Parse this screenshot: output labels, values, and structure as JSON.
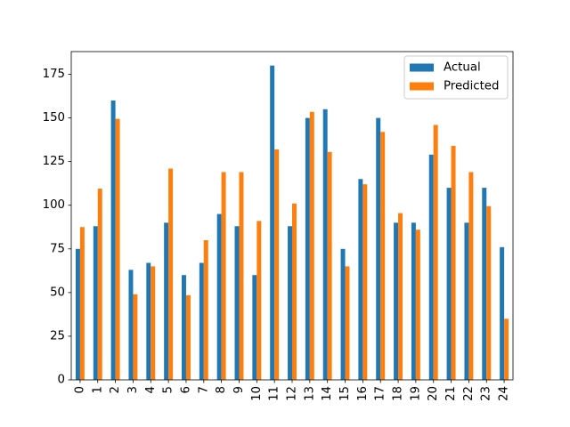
{
  "chart_data": {
    "type": "bar",
    "title": "",
    "xlabel": "",
    "ylabel": "",
    "categories": [
      "0",
      "1",
      "2",
      "3",
      "4",
      "5",
      "6",
      "7",
      "8",
      "9",
      "10",
      "11",
      "12",
      "13",
      "14",
      "15",
      "16",
      "17",
      "18",
      "19",
      "20",
      "21",
      "22",
      "23",
      "24"
    ],
    "ylim": [
      0,
      188
    ],
    "yticks": [
      0,
      25,
      50,
      75,
      100,
      125,
      150,
      175
    ],
    "x_tick_rotation": "vertical",
    "grid": false,
    "legend_position": "top-right",
    "series": [
      {
        "name": "Actual",
        "color": "#1f77b4",
        "values": [
          75,
          88,
          160,
          63,
          67,
          90,
          60,
          67,
          95,
          88,
          60,
          180,
          88,
          150,
          155,
          75,
          115,
          150,
          90,
          90,
          129,
          110,
          90,
          110,
          76
        ]
      },
      {
        "name": "Predicted",
        "color": "#ff7f0e",
        "values": [
          87.5,
          109.5,
          149.5,
          49,
          65,
          121,
          48.5,
          80,
          119,
          119,
          91,
          132,
          101,
          153.5,
          130.5,
          65,
          112,
          142,
          95.5,
          86,
          146,
          134,
          119,
          99.5,
          35
        ]
      }
    ]
  }
}
